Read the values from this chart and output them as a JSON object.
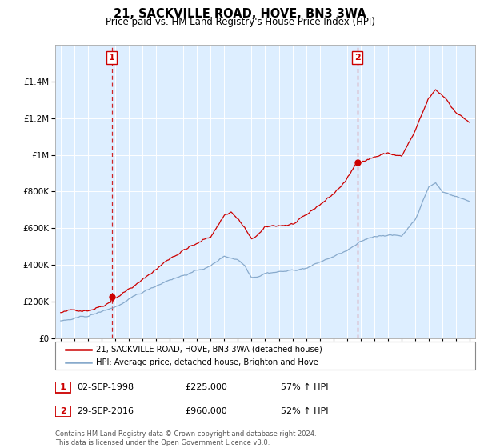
{
  "title": "21, SACKVILLE ROAD, HOVE, BN3 3WA",
  "subtitle": "Price paid vs. HM Land Registry's House Price Index (HPI)",
  "sale1_date": "02-SEP-1998",
  "sale1_price": 225000,
  "sale1_hpi": "57% ↑ HPI",
  "sale2_date": "29-SEP-2016",
  "sale2_price": 960000,
  "sale2_hpi": "52% ↑ HPI",
  "legend_line1": "21, SACKVILLE ROAD, HOVE, BN3 3WA (detached house)",
  "legend_line2": "HPI: Average price, detached house, Brighton and Hove",
  "footer": "Contains HM Land Registry data © Crown copyright and database right 2024.\nThis data is licensed under the Open Government Licence v3.0.",
  "red_color": "#cc0000",
  "blue_color": "#88aacc",
  "bg_color": "#ddeeff",
  "ylim_max": 1600000,
  "sale1_x": 1998.75,
  "sale2_x": 2016.75,
  "years": [
    1995.0,
    1995.08,
    1995.17,
    1995.25,
    1995.33,
    1995.42,
    1995.5,
    1995.58,
    1995.67,
    1995.75,
    1995.83,
    1995.92,
    1996.0,
    1996.08,
    1996.17,
    1996.25,
    1996.33,
    1996.42,
    1996.5,
    1996.58,
    1996.67,
    1996.75,
    1996.83,
    1996.92,
    1997.0,
    1997.08,
    1997.17,
    1997.25,
    1997.33,
    1997.42,
    1997.5,
    1997.58,
    1997.67,
    1997.75,
    1997.83,
    1997.92,
    1998.0,
    1998.08,
    1998.17,
    1998.25,
    1998.33,
    1998.42,
    1998.5,
    1998.58,
    1998.67,
    1998.75,
    1998.83,
    1998.92,
    1999.0,
    1999.08,
    1999.17,
    1999.25,
    1999.33,
    1999.42,
    1999.5,
    1999.58,
    1999.67,
    1999.75,
    1999.83,
    1999.92,
    2000.0,
    2000.08,
    2000.17,
    2000.25,
    2000.33,
    2000.42,
    2000.5,
    2000.58,
    2000.67,
    2000.75,
    2000.83,
    2000.92,
    2001.0,
    2001.08,
    2001.17,
    2001.25,
    2001.33,
    2001.42,
    2001.5,
    2001.58,
    2001.67,
    2001.75,
    2001.83,
    2001.92,
    2002.0,
    2002.08,
    2002.17,
    2002.25,
    2002.33,
    2002.42,
    2002.5,
    2002.58,
    2002.67,
    2002.75,
    2002.83,
    2002.92,
    2003.0,
    2003.08,
    2003.17,
    2003.25,
    2003.33,
    2003.42,
    2003.5,
    2003.58,
    2003.67,
    2003.75,
    2003.83,
    2003.92,
    2004.0,
    2004.08,
    2004.17,
    2004.25,
    2004.33,
    2004.42,
    2004.5,
    2004.58,
    2004.67,
    2004.75,
    2004.83,
    2004.92,
    2005.0,
    2005.08,
    2005.17,
    2005.25,
    2005.33,
    2005.42,
    2005.5,
    2005.58,
    2005.67,
    2005.75,
    2005.83,
    2005.92,
    2006.0,
    2006.08,
    2006.17,
    2006.25,
    2006.33,
    2006.42,
    2006.5,
    2006.58,
    2006.67,
    2006.75,
    2006.83,
    2006.92,
    2007.0,
    2007.08,
    2007.17,
    2007.25,
    2007.33,
    2007.42,
    2007.5,
    2007.58,
    2007.67,
    2007.75,
    2007.83,
    2007.92,
    2008.0,
    2008.08,
    2008.17,
    2008.25,
    2008.33,
    2008.42,
    2008.5,
    2008.58,
    2008.67,
    2008.75,
    2008.83,
    2008.92,
    2009.0,
    2009.08,
    2009.17,
    2009.25,
    2009.33,
    2009.42,
    2009.5,
    2009.58,
    2009.67,
    2009.75,
    2009.83,
    2009.92,
    2010.0,
    2010.08,
    2010.17,
    2010.25,
    2010.33,
    2010.42,
    2010.5,
    2010.58,
    2010.67,
    2010.75,
    2010.83,
    2010.92,
    2011.0,
    2011.08,
    2011.17,
    2011.25,
    2011.33,
    2011.42,
    2011.5,
    2011.58,
    2011.67,
    2011.75,
    2011.83,
    2011.92,
    2012.0,
    2012.08,
    2012.17,
    2012.25,
    2012.33,
    2012.42,
    2012.5,
    2012.58,
    2012.67,
    2012.75,
    2012.83,
    2012.92,
    2013.0,
    2013.08,
    2013.17,
    2013.25,
    2013.33,
    2013.42,
    2013.5,
    2013.58,
    2013.67,
    2013.75,
    2013.83,
    2013.92,
    2014.0,
    2014.08,
    2014.17,
    2014.25,
    2014.33,
    2014.42,
    2014.5,
    2014.58,
    2014.67,
    2014.75,
    2014.83,
    2014.92,
    2015.0,
    2015.08,
    2015.17,
    2015.25,
    2015.33,
    2015.42,
    2015.5,
    2015.58,
    2015.67,
    2015.75,
    2015.83,
    2015.92,
    2016.0,
    2016.08,
    2016.17,
    2016.25,
    2016.33,
    2016.42,
    2016.5,
    2016.58,
    2016.67,
    2016.75,
    2016.83,
    2016.92,
    2017.0,
    2017.08,
    2017.17,
    2017.25,
    2017.33,
    2017.42,
    2017.5,
    2017.58,
    2017.67,
    2017.75,
    2017.83,
    2017.92,
    2018.0,
    2018.08,
    2018.17,
    2018.25,
    2018.33,
    2018.42,
    2018.5,
    2018.58,
    2018.67,
    2018.75,
    2018.83,
    2018.92,
    2019.0,
    2019.08,
    2019.17,
    2019.25,
    2019.33,
    2019.42,
    2019.5,
    2019.58,
    2019.67,
    2019.75,
    2019.83,
    2019.92,
    2020.0,
    2020.08,
    2020.17,
    2020.25,
    2020.33,
    2020.42,
    2020.5,
    2020.58,
    2020.67,
    2020.75,
    2020.83,
    2020.92,
    2021.0,
    2021.08,
    2021.17,
    2021.25,
    2021.33,
    2021.42,
    2021.5,
    2021.58,
    2021.67,
    2021.75,
    2021.83,
    2021.92,
    2022.0,
    2022.08,
    2022.17,
    2022.25,
    2022.33,
    2022.42,
    2022.5,
    2022.58,
    2022.67,
    2022.75,
    2022.83,
    2022.92,
    2023.0,
    2023.08,
    2023.17,
    2023.25,
    2023.33,
    2023.42,
    2023.5,
    2023.58,
    2023.67,
    2023.75,
    2023.83,
    2023.92,
    2024.0,
    2024.08,
    2024.17,
    2024.25,
    2024.33,
    2024.42,
    2024.5,
    2024.58,
    2024.67,
    2024.75,
    2024.83,
    2024.92,
    2025.0
  ]
}
